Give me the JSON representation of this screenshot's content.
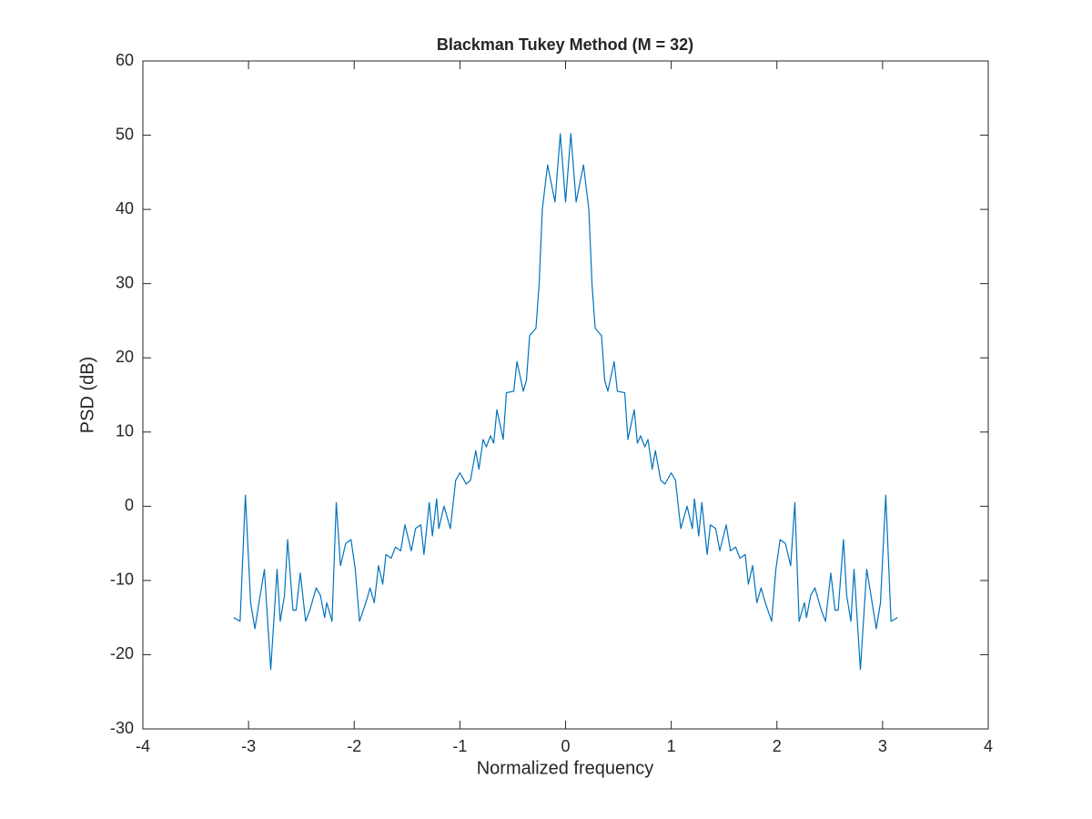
{
  "chart_data": {
    "type": "line",
    "title": "Blackman Tukey Method (M = 32)",
    "xlabel": "Normalized frequency",
    "ylabel": "PSD (dB)",
    "xlim": [
      -4,
      4
    ],
    "ylim": [
      -30,
      60
    ],
    "xticks": [
      -4,
      -3,
      -2,
      -1,
      0,
      1,
      2,
      3,
      4
    ],
    "yticks": [
      -30,
      -20,
      -10,
      0,
      10,
      20,
      30,
      40,
      50,
      60
    ],
    "series": [
      {
        "name": "PSD",
        "color": "#0072bd",
        "x": [
          -3.14,
          -3.08,
          -3.03,
          -2.98,
          -2.94,
          -2.89,
          -2.85,
          -2.79,
          -2.73,
          -2.7,
          -2.66,
          -2.63,
          -2.58,
          -2.55,
          -2.51,
          -2.46,
          -2.42,
          -2.36,
          -2.32,
          -2.28,
          -2.26,
          -2.21,
          -2.17,
          -2.13,
          -2.08,
          -2.03,
          -1.99,
          -1.95,
          -1.89,
          -1.85,
          -1.81,
          -1.77,
          -1.73,
          -1.7,
          -1.65,
          -1.61,
          -1.56,
          -1.52,
          -1.46,
          -1.42,
          -1.37,
          -1.34,
          -1.29,
          -1.26,
          -1.22,
          -1.2,
          -1.15,
          -1.09,
          -1.04,
          -1,
          -0.94,
          -0.9,
          -0.85,
          -0.82,
          -0.78,
          -0.75,
          -0.71,
          -0.68,
          -0.65,
          -0.59,
          -0.56,
          -0.49,
          -0.46,
          -0.4,
          -0.37,
          -0.34,
          -0.28,
          -0.25,
          -0.22,
          -0.17,
          -0.1,
          -0.05,
          0,
          0.05,
          0.1,
          0.17,
          0.22,
          0.25,
          0.28,
          0.34,
          0.37,
          0.4,
          0.46,
          0.49,
          0.56,
          0.59,
          0.65,
          0.68,
          0.71,
          0.75,
          0.78,
          0.82,
          0.85,
          0.9,
          0.94,
          1,
          1.04,
          1.09,
          1.15,
          1.2,
          1.22,
          1.26,
          1.29,
          1.34,
          1.37,
          1.42,
          1.46,
          1.52,
          1.56,
          1.61,
          1.65,
          1.7,
          1.73,
          1.77,
          1.81,
          1.85,
          1.89,
          1.95,
          1.99,
          2.03,
          2.08,
          2.13,
          2.17,
          2.21,
          2.26,
          2.28,
          2.32,
          2.36,
          2.42,
          2.46,
          2.51,
          2.55,
          2.58,
          2.63,
          2.66,
          2.7,
          2.73,
          2.79,
          2.85,
          2.89,
          2.94,
          2.98,
          3.03,
          3.08,
          3.14
        ],
        "values": [
          -15,
          -15.5,
          1.5,
          -13,
          -16.5,
          -12,
          -8.5,
          -22,
          -8.5,
          -15.5,
          -12,
          -4.5,
          -14,
          -14,
          -9,
          -15.5,
          -14,
          -11,
          -12,
          -15,
          -13,
          -15.5,
          0.5,
          -8,
          -5,
          -4.5,
          -8.5,
          -15.5,
          -13,
          -11,
          -13,
          -8,
          -10.5,
          -6.5,
          -7,
          -5.5,
          -6,
          -2.5,
          -6,
          -3,
          -2.5,
          -6.5,
          0.5,
          -4,
          1,
          -3,
          0,
          -3,
          3.5,
          4.5,
          3,
          3.5,
          7.5,
          5,
          9,
          8,
          9.5,
          8.5,
          13,
          9,
          15.3,
          15.5,
          19.5,
          15.5,
          17,
          23,
          24,
          30,
          40,
          46,
          41,
          50.2,
          41,
          50.2,
          41,
          46,
          40,
          30,
          24,
          23,
          17,
          15.5,
          19.5,
          15.5,
          15.3,
          9,
          13,
          8.5,
          9.5,
          8,
          9,
          5,
          7.5,
          3.5,
          3,
          4.5,
          3.5,
          -3,
          0,
          -3,
          1,
          -4,
          0.5,
          -6.5,
          -2.5,
          -3,
          -6,
          -2.5,
          -6,
          -5.5,
          -7,
          -6.5,
          -10.5,
          -8,
          -13,
          -11,
          -13,
          -15.5,
          -8.5,
          -4.5,
          -5,
          -8,
          0.5,
          -15.5,
          -13,
          -15,
          -12,
          -11,
          -14,
          -15.5,
          -9,
          -14,
          -14,
          -4.5,
          -12,
          -15.5,
          -8.5,
          -22,
          -8.5,
          -12,
          -16.5,
          -13,
          1.5,
          -15.5,
          -15
        ]
      }
    ]
  }
}
